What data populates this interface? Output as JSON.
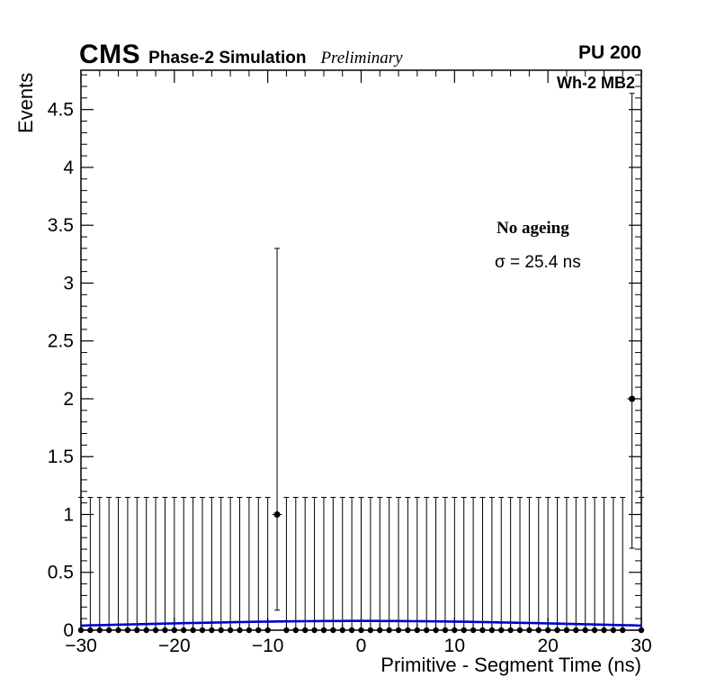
{
  "header": {
    "experiment": "CMS",
    "label": "Phase-2 Simulation",
    "sublabel": "Preliminary",
    "right": "PU 200"
  },
  "plot": {
    "corner_label": "Wh-2 MB2",
    "annotation_title": "No ageing",
    "annotation_sigma": "σ = 25.4 ns"
  },
  "axes": {
    "x_label": "Primitive - Segment Time (ns)",
    "y_label": "Events"
  },
  "chart_data": {
    "type": "scatter",
    "title": "",
    "xlabel": "Primitive - Segment Time (ns)",
    "ylabel": "Events",
    "xlim": [
      -30,
      30
    ],
    "ylim": [
      0,
      4.84
    ],
    "grid": false,
    "legend_position": "none",
    "x_ticks": [
      {
        "v": -30,
        "label": "−30"
      },
      {
        "v": -20,
        "label": "−20"
      },
      {
        "v": -10,
        "label": "−10"
      },
      {
        "v": 0,
        "label": "0"
      },
      {
        "v": 10,
        "label": "10"
      },
      {
        "v": 20,
        "label": "20"
      },
      {
        "v": 30,
        "label": "30"
      }
    ],
    "x_minor_step": 2,
    "y_ticks": [
      {
        "v": 0,
        "label": "0"
      },
      {
        "v": 0.5,
        "label": "0.5"
      },
      {
        "v": 1,
        "label": "1"
      },
      {
        "v": 1.5,
        "label": "1.5"
      },
      {
        "v": 2,
        "label": "2"
      },
      {
        "v": 2.5,
        "label": "2.5"
      },
      {
        "v": 3,
        "label": "3"
      },
      {
        "v": 3.5,
        "label": "3.5"
      },
      {
        "v": 4,
        "label": "4"
      },
      {
        "v": 4.5,
        "label": "4.5"
      }
    ],
    "y_minor_step": 0.1,
    "bin_width": 1,
    "points": {
      "zero_bins_x": [
        -30,
        -29,
        -28,
        -27,
        -26,
        -25,
        -24,
        -23,
        -22,
        -21,
        -20,
        -19,
        -18,
        -17,
        -16,
        -15,
        -14,
        -13,
        -12,
        -11,
        -10,
        -8,
        -7,
        -6,
        -5,
        -4,
        -3,
        -2,
        -1,
        0,
        1,
        2,
        3,
        4,
        5,
        6,
        7,
        8,
        9,
        10,
        11,
        12,
        13,
        14,
        15,
        16,
        17,
        18,
        19,
        20,
        21,
        22,
        23,
        24,
        25,
        26,
        27,
        28,
        30
      ],
      "zero_y": 0,
      "zero_upper_error": 1.148,
      "nonzero": [
        {
          "x": -9,
          "y": 1,
          "y_low": 0.173,
          "y_high": 3.3
        },
        {
          "x": 29,
          "y": 2,
          "y_low": 0.708,
          "y_high": 4.64
        }
      ]
    },
    "fit": {
      "shape": "gaussian",
      "mean": 0,
      "sigma_ns": 25.4,
      "amplitude": 0.08,
      "color": "#0000cc"
    },
    "marker_color": "#000000",
    "frame_color": "#000000"
  }
}
